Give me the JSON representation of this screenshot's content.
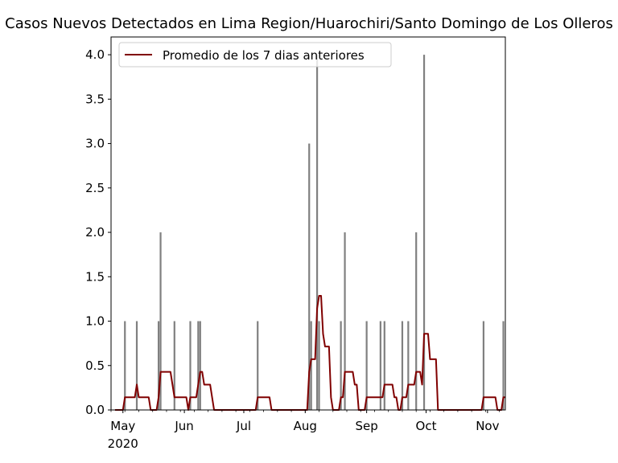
{
  "chart_data": {
    "type": "bar",
    "title": "Casos Nuevos Detectados en Lima Region/Huarochiri/Santo Domingo de Los Olleros",
    "xlabel": "",
    "ylabel": "",
    "x_range": [
      "2020-04-25",
      "2020-11-10"
    ],
    "ylim": [
      0,
      4.2
    ],
    "y_ticks": [
      "0.0",
      "0.5",
      "1.0",
      "1.5",
      "2.0",
      "2.5",
      "3.0",
      "3.5",
      "4.0"
    ],
    "x_ticks": [
      {
        "date": "2020-05-01",
        "label": "May",
        "sublabel": "2020"
      },
      {
        "date": "2020-06-01",
        "label": "Jun",
        "sublabel": ""
      },
      {
        "date": "2020-07-01",
        "label": "Jul",
        "sublabel": ""
      },
      {
        "date": "2020-08-01",
        "label": "Aug",
        "sublabel": ""
      },
      {
        "date": "2020-09-01",
        "label": "Sep",
        "sublabel": ""
      },
      {
        "date": "2020-10-01",
        "label": "Oct",
        "sublabel": ""
      },
      {
        "date": "2020-11-01",
        "label": "Nov",
        "sublabel": ""
      }
    ],
    "grid": false,
    "legend_placement": "top-left",
    "bar_color": "#808080",
    "line_color": "#800000",
    "bars": [
      {
        "x": "2020-05-02",
        "y": 1
      },
      {
        "x": "2020-05-08",
        "y": 1
      },
      {
        "x": "2020-05-19",
        "y": 1
      },
      {
        "x": "2020-05-20",
        "y": 2
      },
      {
        "x": "2020-05-27",
        "y": 1
      },
      {
        "x": "2020-06-04",
        "y": 1
      },
      {
        "x": "2020-06-08",
        "y": 1
      },
      {
        "x": "2020-06-09",
        "y": 1
      },
      {
        "x": "2020-07-08",
        "y": 1
      },
      {
        "x": "2020-08-03",
        "y": 3
      },
      {
        "x": "2020-08-04",
        "y": 1
      },
      {
        "x": "2020-08-07",
        "y": 4
      },
      {
        "x": "2020-08-08",
        "y": 1
      },
      {
        "x": "2020-08-19",
        "y": 1
      },
      {
        "x": "2020-08-21",
        "y": 2
      },
      {
        "x": "2020-09-01",
        "y": 1
      },
      {
        "x": "2020-09-08",
        "y": 1
      },
      {
        "x": "2020-09-10",
        "y": 1
      },
      {
        "x": "2020-09-19",
        "y": 1
      },
      {
        "x": "2020-09-22",
        "y": 1
      },
      {
        "x": "2020-09-26",
        "y": 2
      },
      {
        "x": "2020-09-30",
        "y": 4
      },
      {
        "x": "2020-10-30",
        "y": 1
      },
      {
        "x": "2020-11-09",
        "y": 1
      }
    ],
    "series": [
      {
        "name": "Promedio de los 7 dias anteriores",
        "kind": "line",
        "window_days": 7
      }
    ]
  }
}
